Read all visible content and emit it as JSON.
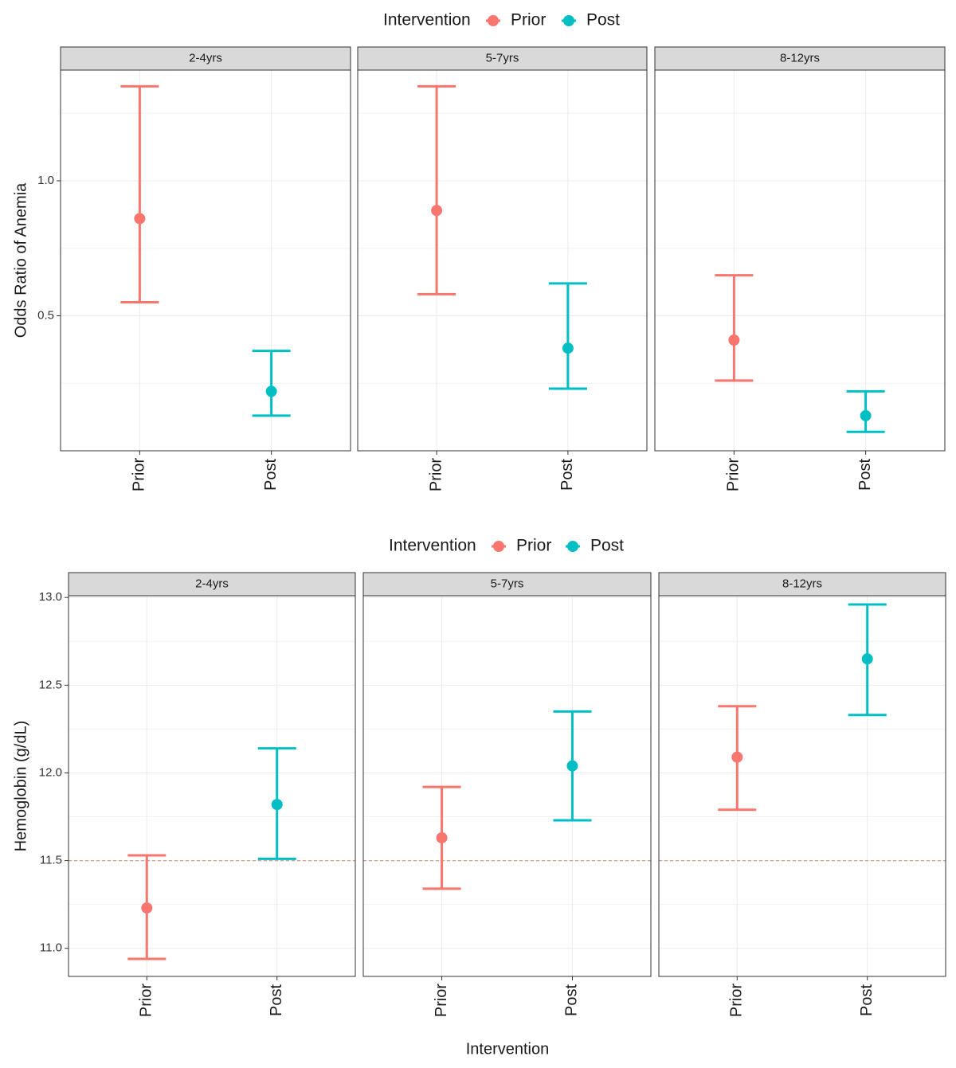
{
  "chart_data": [
    {
      "type": "errorbar",
      "legend": {
        "title": "Intervention",
        "items": [
          {
            "label": "Prior",
            "color": "#F8766D"
          },
          {
            "label": "Post",
            "color": "#00BFC4"
          }
        ]
      },
      "ylabel": "Odds Ratio of Anemia",
      "xlabel": "",
      "ylim": [
        0.0,
        1.41
      ],
      "yticks": [
        0.5,
        1.0
      ],
      "ytick_labels": [
        "0.5",
        "1.0"
      ],
      "categories": [
        "Prior",
        "Post"
      ],
      "facets": [
        {
          "label": "2-4yrs",
          "points": [
            {
              "group": "Prior",
              "estimate": 0.86,
              "lower": 0.55,
              "upper": 1.35
            },
            {
              "group": "Post",
              "estimate": 0.22,
              "lower": 0.13,
              "upper": 0.37
            }
          ]
        },
        {
          "label": "5-7yrs",
          "points": [
            {
              "group": "Prior",
              "estimate": 0.89,
              "lower": 0.58,
              "upper": 1.35
            },
            {
              "group": "Post",
              "estimate": 0.38,
              "lower": 0.23,
              "upper": 0.62
            }
          ]
        },
        {
          "label": "8-12yrs",
          "points": [
            {
              "group": "Prior",
              "estimate": 0.41,
              "lower": 0.26,
              "upper": 0.65
            },
            {
              "group": "Post",
              "estimate": 0.13,
              "lower": 0.07,
              "upper": 0.22
            }
          ]
        }
      ]
    },
    {
      "type": "errorbar",
      "legend": {
        "title": "Intervention",
        "items": [
          {
            "label": "Prior",
            "color": "#F8766D"
          },
          {
            "label": "Post",
            "color": "#00BFC4"
          }
        ]
      },
      "ylabel": "Hemoglobin (g/dL)",
      "xlabel": "Intervention",
      "ylim": [
        10.84,
        13.01
      ],
      "yticks": [
        11.0,
        11.5,
        12.0,
        12.5,
        13.0
      ],
      "ytick_labels": [
        "11.0",
        "11.5",
        "12.0",
        "12.5",
        "13.0"
      ],
      "reference_line": {
        "y": 11.5,
        "color": "#D2A08C",
        "style": "dashed"
      },
      "categories": [
        "Prior",
        "Post"
      ],
      "facets": [
        {
          "label": "2-4yrs",
          "points": [
            {
              "group": "Prior",
              "estimate": 11.23,
              "lower": 10.94,
              "upper": 11.53
            },
            {
              "group": "Post",
              "estimate": 11.82,
              "lower": 11.51,
              "upper": 12.14
            }
          ]
        },
        {
          "label": "5-7yrs",
          "points": [
            {
              "group": "Prior",
              "estimate": 11.63,
              "lower": 11.34,
              "upper": 11.92
            },
            {
              "group": "Post",
              "estimate": 12.04,
              "lower": 11.73,
              "upper": 12.35
            }
          ]
        },
        {
          "label": "8-12yrs",
          "points": [
            {
              "group": "Prior",
              "estimate": 12.09,
              "lower": 11.79,
              "upper": 12.38
            },
            {
              "group": "Post",
              "estimate": 12.65,
              "lower": 12.33,
              "upper": 12.96
            }
          ]
        }
      ]
    }
  ],
  "colors": {
    "prior": "#F8766D",
    "post": "#00BFC4",
    "strip_bg": "#D9D9D9",
    "grid": "#EBEBEB"
  }
}
